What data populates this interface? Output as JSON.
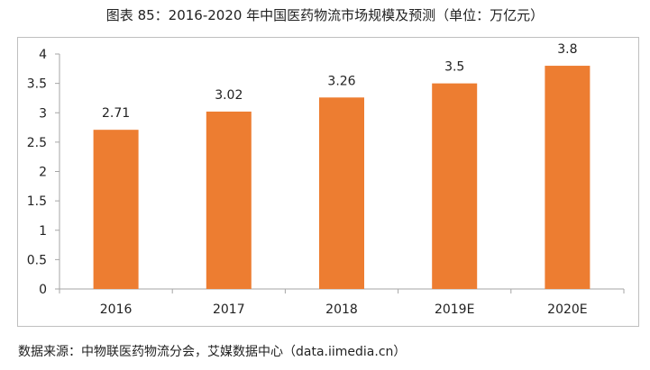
{
  "chart_data": {
    "type": "bar",
    "title": "图表 85：2016-2020 年中国医药物流市场规模及预测（单位：万亿元）",
    "categories": [
      "2016",
      "2017",
      "2018",
      "2019E",
      "2020E"
    ],
    "values": [
      2.71,
      3.02,
      3.26,
      3.5,
      3.8
    ],
    "data_labels": [
      "2.71",
      "3.02",
      "3.26",
      "3.5",
      "3.8"
    ],
    "ylim": [
      0,
      4
    ],
    "yticks": [
      "0",
      "0.5",
      "1",
      "1.5",
      "2",
      "2.5",
      "3",
      "3.5",
      "4"
    ],
    "grid": false,
    "bar_color": "#ED7D31",
    "xlabel": "",
    "ylabel": ""
  },
  "source": "数据来源：中物联医药物流分会，艾媒数据中心（data.iimedia.cn）"
}
